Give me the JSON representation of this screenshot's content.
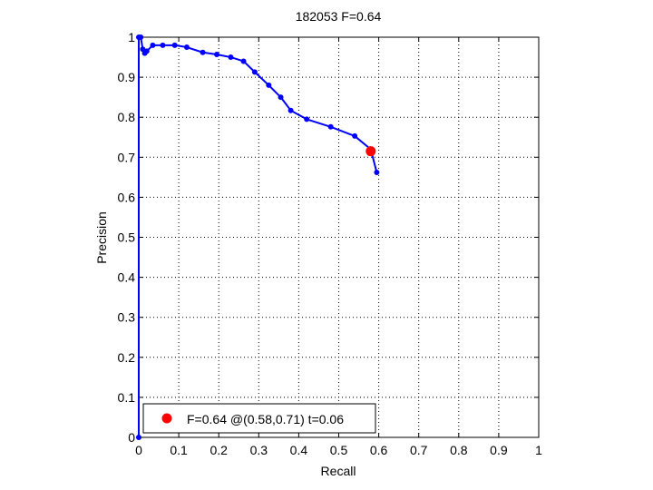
{
  "chart_data": {
    "type": "line",
    "title": "182053 F=0.64",
    "xlabel": "Recall",
    "ylabel": "Precision",
    "xlim": [
      0,
      1
    ],
    "ylim": [
      0,
      1
    ],
    "xticks": [
      "0",
      "0.1",
      "0.2",
      "0.3",
      "0.4",
      "0.5",
      "0.6",
      "0.7",
      "0.8",
      "0.9",
      "1"
    ],
    "yticks": [
      "0",
      "0.1",
      "0.2",
      "0.3",
      "0.4",
      "0.5",
      "0.6",
      "0.7",
      "0.8",
      "0.9",
      "1"
    ],
    "grid": true,
    "legend_position": "bottom-left",
    "series": [
      {
        "color": "#0000ff",
        "x": [
          0.0,
          0.0,
          0.005,
          0.01,
          0.015,
          0.02,
          0.035,
          0.06,
          0.09,
          0.12,
          0.16,
          0.195,
          0.23,
          0.262,
          0.29,
          0.325,
          0.355,
          0.38,
          0.42,
          0.48,
          0.54,
          0.58,
          0.595
        ],
        "y": [
          0.0,
          1.0,
          1.0,
          0.97,
          0.96,
          0.965,
          0.98,
          0.98,
          0.98,
          0.975,
          0.962,
          0.957,
          0.95,
          0.94,
          0.913,
          0.88,
          0.85,
          0.817,
          0.795,
          0.776,
          0.753,
          0.72,
          0.662
        ]
      }
    ],
    "highlight": {
      "color": "#ff0000",
      "x": 0.58,
      "y": 0.715,
      "label": "F=0.64 @(0.58,0.71) t=0.06"
    }
  },
  "colors": {
    "line": "#0000ff",
    "highlight": "#ff0000",
    "grid": "#000000"
  }
}
